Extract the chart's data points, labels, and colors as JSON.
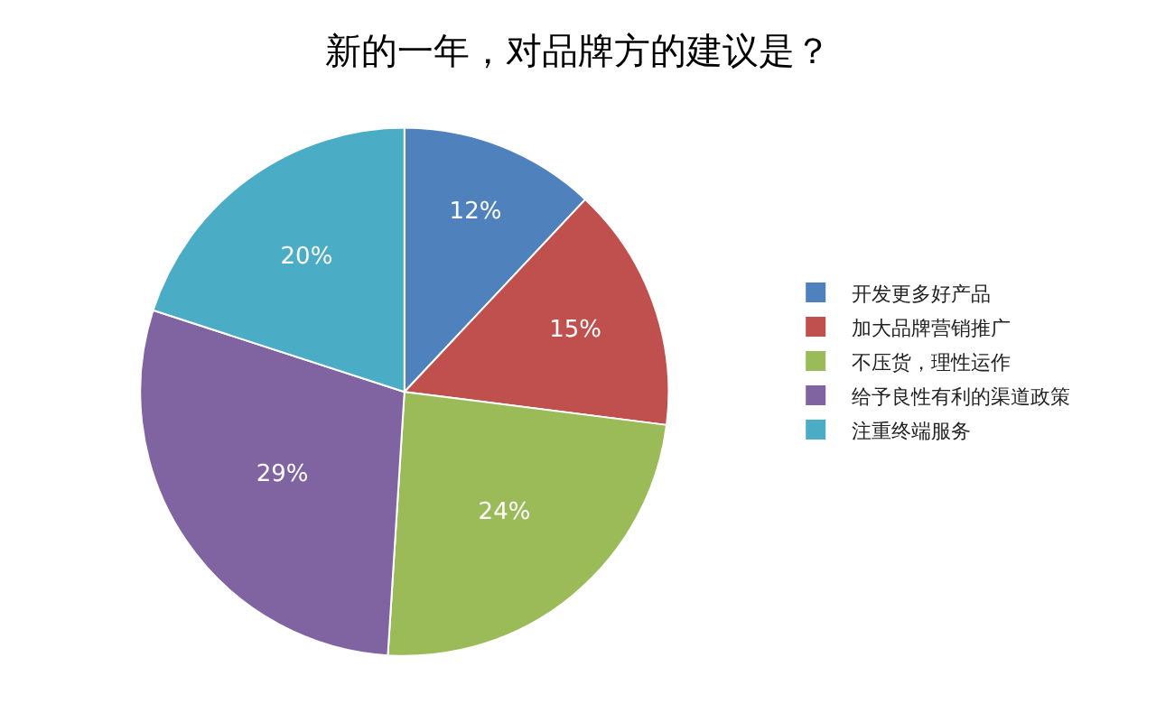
{
  "chart_data": {
    "type": "pie",
    "title": "新的一年，对品牌方的建议是？",
    "categories": [
      "开发更多好产品",
      "加大品牌营销推广",
      "不压货，理性运作",
      "给予良性有利的渠道政策",
      "注重终端服务"
    ],
    "values": [
      12,
      15,
      24,
      29,
      20
    ],
    "value_labels": [
      "12%",
      "15%",
      "24%",
      "29%",
      "20%"
    ],
    "colors": [
      "#4f81bd",
      "#c0504d",
      "#9bbb59",
      "#8064a2",
      "#4bacc6"
    ],
    "legend": "right"
  }
}
